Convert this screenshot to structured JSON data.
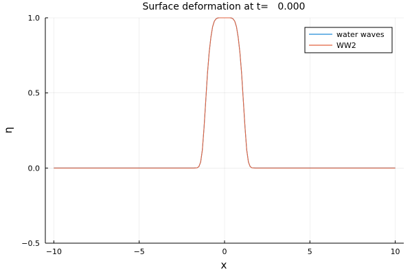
{
  "chart_data": {
    "type": "line",
    "title": "Surface deformation at t=   0.000",
    "xlabel": "x",
    "ylabel": "η",
    "xlim": [
      -10.5,
      10.5
    ],
    "ylim": [
      -0.5,
      1.0
    ],
    "xticks": [
      -10,
      -5,
      0,
      5,
      10
    ],
    "xtick_labels": [
      "−10",
      "−5",
      "0",
      "5",
      "10"
    ],
    "yticks": [
      -0.5,
      0.0,
      0.5,
      1.0
    ],
    "ytick_labels": [
      "−0.5",
      "0.0",
      "0.5",
      "1.0"
    ],
    "grid": true,
    "legend_position": "top-right",
    "series": [
      {
        "name": "water waves",
        "color": "#1f8bd6",
        "x": [
          -10,
          -2,
          -1.8,
          -1.6,
          -1.5,
          -1.4,
          -1.3,
          -1.2,
          -1.1,
          -1.0,
          -0.9,
          -0.8,
          -0.7,
          -0.6,
          -0.5,
          -0.4,
          -0.3,
          -0.2,
          -0.1,
          0,
          0.1,
          0.2,
          0.3,
          0.4,
          0.5,
          0.6,
          0.7,
          0.8,
          0.9,
          1.0,
          1.1,
          1.2,
          1.3,
          1.4,
          1.5,
          1.6,
          1.8,
          2,
          10
        ],
        "y": [
          0,
          0,
          0,
          0.002,
          0.01,
          0.04,
          0.12,
          0.27,
          0.45,
          0.63,
          0.77,
          0.87,
          0.94,
          0.977,
          0.993,
          0.999,
          1.0,
          1.0,
          1.0,
          1.0,
          1.0,
          1.0,
          1.0,
          0.999,
          0.993,
          0.977,
          0.94,
          0.87,
          0.77,
          0.63,
          0.45,
          0.27,
          0.12,
          0.04,
          0.01,
          0.002,
          0,
          0,
          0
        ]
      },
      {
        "name": "WW2",
        "color": "#e2623d",
        "x": [
          -10,
          -2,
          -1.8,
          -1.6,
          -1.5,
          -1.4,
          -1.3,
          -1.2,
          -1.1,
          -1.0,
          -0.9,
          -0.8,
          -0.7,
          -0.6,
          -0.5,
          -0.4,
          -0.3,
          -0.2,
          -0.1,
          0,
          0.1,
          0.2,
          0.3,
          0.4,
          0.5,
          0.6,
          0.7,
          0.8,
          0.9,
          1.0,
          1.1,
          1.2,
          1.3,
          1.4,
          1.5,
          1.6,
          1.8,
          2,
          10
        ],
        "y": [
          0,
          0,
          0,
          0.002,
          0.01,
          0.04,
          0.12,
          0.27,
          0.45,
          0.63,
          0.77,
          0.87,
          0.94,
          0.977,
          0.993,
          0.999,
          1.0,
          1.0,
          1.0,
          1.0,
          1.0,
          1.0,
          1.0,
          0.999,
          0.993,
          0.977,
          0.94,
          0.87,
          0.77,
          0.63,
          0.45,
          0.27,
          0.12,
          0.04,
          0.01,
          0.002,
          0,
          0,
          0
        ]
      }
    ]
  }
}
